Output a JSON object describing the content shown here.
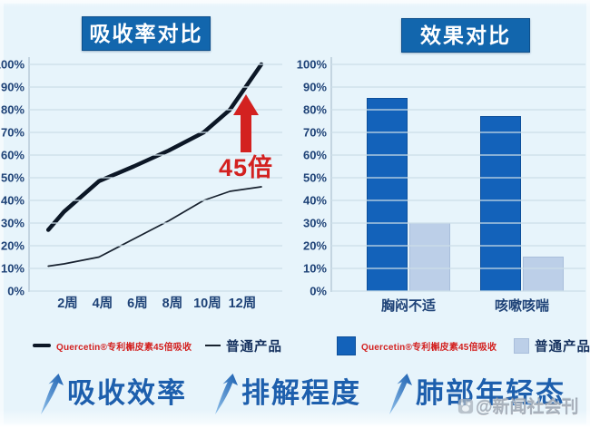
{
  "chart_data": [
    {
      "type": "line",
      "title": "吸收率对比",
      "x_unit": "周",
      "xlim": [
        0,
        14.5
      ],
      "ylim": [
        0,
        100
      ],
      "x_ticks": [
        2,
        4,
        6,
        8,
        10,
        12
      ],
      "x_tick_labels": [
        "2周",
        "4周",
        "6周",
        "8周",
        "10周",
        "12周"
      ],
      "y_tick_labels": [
        "0%",
        "10%",
        "20%",
        "30%",
        "40%",
        "50%",
        "60%",
        "70%",
        "80%",
        "90%",
        "100%"
      ],
      "grid": true,
      "legend_position": "bottom",
      "series": [
        {
          "name": "Quercetin®专利槲皮素45倍吸收",
          "style": "thick",
          "color": "#0c1726",
          "points": [
            [
              1.1,
              27
            ],
            [
              2,
              35
            ],
            [
              4,
              48.5
            ],
            [
              6,
              55
            ],
            [
              8,
              62
            ],
            [
              10,
              70
            ],
            [
              11.5,
              80
            ],
            [
              13.3,
              100
            ]
          ]
        },
        {
          "name": "普通产品",
          "style": "thin",
          "color": "#18222f",
          "points": [
            [
              1.1,
              11
            ],
            [
              2,
              12
            ],
            [
              4,
              15
            ],
            [
              6,
              23
            ],
            [
              8,
              31
            ],
            [
              10,
              40
            ],
            [
              11.5,
              44
            ],
            [
              13.3,
              46
            ]
          ]
        }
      ],
      "annotation": {
        "text": "45倍",
        "color": "#d32120",
        "arrow": "up"
      }
    },
    {
      "type": "bar",
      "title": "效果对比",
      "categories": [
        "胸闷不适",
        "咳嗽咳喘"
      ],
      "ylim": [
        0,
        100
      ],
      "y_tick_labels": [
        "0%",
        "10%",
        "20%",
        "30%",
        "40%",
        "50%",
        "60%",
        "70%",
        "80%",
        "90%",
        "100%"
      ],
      "grid": true,
      "legend_position": "bottom",
      "series": [
        {
          "name": "Quercetin®专利槲皮素45倍吸收",
          "color": "#1362ba",
          "values": [
            85,
            77
          ]
        },
        {
          "name": "普通产品",
          "color": "#bccfe8",
          "values": [
            30,
            15
          ]
        }
      ]
    }
  ],
  "footer": {
    "items": [
      {
        "icon": "up-trend-arrow-icon",
        "label": "吸收效率"
      },
      {
        "icon": "up-trend-arrow-icon",
        "label": "排解程度"
      },
      {
        "icon": "up-trend-arrow-icon",
        "label": "肺部年轻态"
      }
    ]
  },
  "watermark": {
    "icon": "paw-logo-icon",
    "text": "@新闻社会刊"
  },
  "colors": {
    "background": "#e7f4fb",
    "badge_blue": "#1266ad",
    "bar_dark": "#1362ba",
    "bar_light": "#bccfe8",
    "gridline": "#ccdde8",
    "tick_text": "#1e4277",
    "accent_red": "#d32120",
    "footer_blue": "#1d5fad"
  }
}
